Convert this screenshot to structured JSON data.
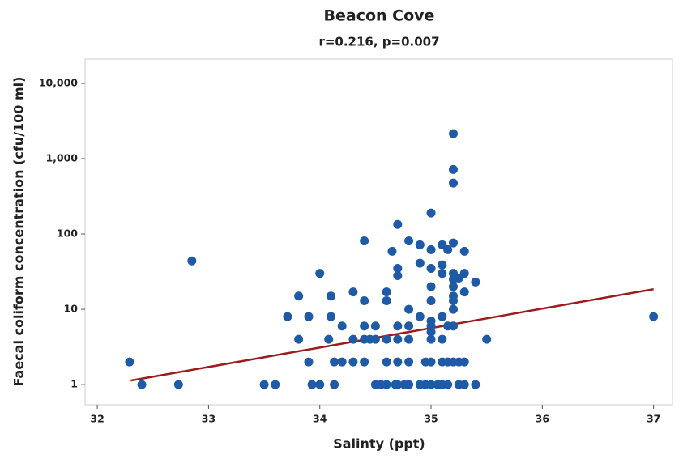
{
  "chart_data": {
    "type": "scatter",
    "title": "Beacon Cove",
    "subtitle": "r=0.216, p=0.007",
    "x_label": "Salinty (ppt)",
    "y_label": "Faecal coliform concentration (cfu/100 ml)",
    "y_scale": "log",
    "color": "#1f5aa6",
    "xlim": [
      31.89,
      37.17
    ],
    "xticks": [
      32,
      33,
      34,
      35,
      36,
      37
    ],
    "ylim": [
      0.54,
      21000
    ],
    "yticks": [
      1,
      10,
      100,
      {
        "value": 1000,
        "label": "1,000"
      },
      {
        "value": 10000,
        "label": "10,000"
      }
    ],
    "x": [
      32.29,
      32.4,
      32.73,
      32.85,
      33.5,
      33.6,
      33.71,
      33.81,
      33.81,
      33.9,
      33.9,
      33.93,
      34.0,
      34.0,
      34.08,
      34.1,
      34.1,
      34.13,
      34.13,
      34.2,
      34.2,
      34.3,
      34.3,
      34.3,
      34.4,
      34.4,
      34.4,
      34.4,
      34.4,
      34.45,
      34.5,
      34.5,
      34.5,
      34.55,
      34.6,
      34.6,
      34.6,
      34.6,
      34.6,
      34.65,
      34.68,
      34.7,
      34.7,
      34.7,
      34.7,
      34.7,
      34.7,
      34.7,
      34.76,
      34.8,
      34.8,
      34.8,
      34.8,
      34.8,
      34.8,
      34.9,
      34.9,
      34.9,
      34.9,
      34.95,
      34.95,
      35.0,
      35.0,
      35.0,
      35.0,
      35.0,
      35.0,
      35.0,
      35.0,
      35.0,
      35.0,
      35.0,
      35.06,
      35.1,
      35.1,
      35.1,
      35.1,
      35.1,
      35.1,
      35.1,
      35.15,
      35.15,
      35.15,
      35.15,
      35.2,
      35.2,
      35.2,
      35.2,
      35.2,
      35.2,
      35.2,
      35.2,
      35.2,
      35.2,
      35.2,
      35.2,
      35.25,
      35.25,
      35.25,
      35.3,
      35.3,
      35.3,
      35.3,
      35.3,
      35.4,
      35.4,
      35.5,
      37.0
    ],
    "values": [
      2,
      1,
      1,
      44,
      1,
      1,
      8,
      15,
      4,
      8,
      2,
      1,
      30,
      1,
      4,
      15,
      8,
      2,
      1,
      6,
      2,
      17,
      4,
      2,
      81,
      13,
      6,
      4,
      2,
      4,
      6,
      4,
      1,
      1,
      1,
      17,
      13,
      4,
      2,
      59,
      1,
      134,
      35,
      28,
      6,
      4,
      2,
      1,
      1,
      81,
      10,
      6,
      4,
      2,
      1,
      72,
      41,
      8,
      1,
      2,
      1,
      190,
      62,
      35,
      20,
      13,
      7,
      6,
      5,
      4,
      2,
      1,
      1,
      72,
      39,
      30,
      8,
      4,
      2,
      1,
      62,
      6,
      2,
      1,
      2150,
      718,
      475,
      76,
      30,
      25,
      20,
      15,
      13,
      10,
      6,
      2,
      26,
      1,
      2,
      59,
      30,
      17,
      2,
      1,
      23,
      1,
      4,
      8
    ],
    "trendline": {
      "color": "#9b1c1c",
      "x": [
        32.3,
        37.0
      ],
      "values": [
        1.13,
        18.5
      ]
    }
  }
}
